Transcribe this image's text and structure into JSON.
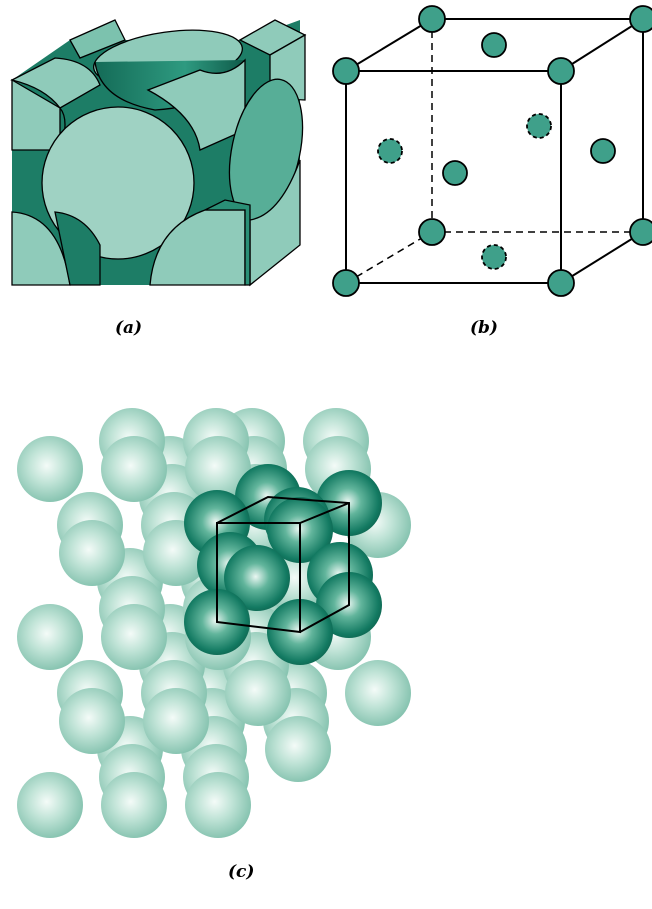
{
  "captions": {
    "a": "(a)",
    "b": "(b)",
    "c": "(c)"
  },
  "colors": {
    "atom_solid": "#3fa08a",
    "atom_face": "#8fcbba",
    "atom_dark": "#1a7a64",
    "sphere_light": "#e8f5f0",
    "sphere_mid": "#a9d8c8",
    "sphere_edge": "#6fb7a2",
    "highlight_dark": "#0f6e58",
    "line": "#000000"
  }
}
